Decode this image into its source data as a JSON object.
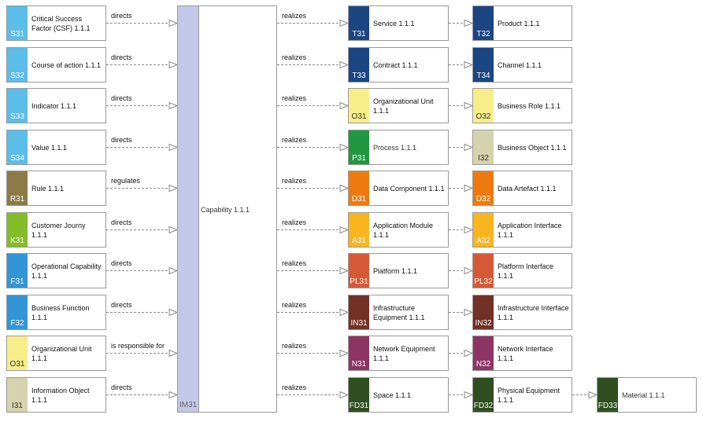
{
  "left_nodes": [
    {
      "code": "S31",
      "label": "Critical Success Factor (CSF) 1.1.1",
      "color": "#5bbde8",
      "relation": "directs"
    },
    {
      "code": "S32",
      "label": "Course of action 1.1.1",
      "color": "#5bbde8",
      "relation": "directs"
    },
    {
      "code": "S33",
      "label": "Indicator 1.1.1",
      "color": "#5bbde8",
      "relation": "directs"
    },
    {
      "code": "S34",
      "label": "Value 1.1.1",
      "color": "#5bbde8",
      "relation": "directs"
    },
    {
      "code": "R31",
      "label": "Rule 1.1.1",
      "color": "#8c7a47",
      "relation": "regulates"
    },
    {
      "code": "K31",
      "label": "Customer Journy 1.1.1",
      "color": "#84bd2a",
      "relation": "directs"
    },
    {
      "code": "F31",
      "label": "Operational Capability 1.1.1",
      "color": "#3395d6",
      "relation": "directs"
    },
    {
      "code": "F32",
      "label": "Business Function 1.1.1",
      "color": "#3395d6",
      "relation": "directs"
    },
    {
      "code": "O31",
      "label": "Organizational Unit 1.1.1",
      "color": "#f7ee8a",
      "relation": "is responsible for",
      "dark": true
    },
    {
      "code": "I31",
      "label": "Information Object 1.1.1",
      "color": "#d4d3ad",
      "relation": "directs",
      "dark": true
    }
  ],
  "capability": {
    "code": "IM31",
    "label": "Capability 1.1.1",
    "color": "#c2c9e8"
  },
  "right_rows": [
    {
      "relation": "realizes",
      "a": {
        "code": "T31",
        "label": "Service 1.1.1",
        "color": "#1b4682"
      },
      "b": {
        "code": "T32",
        "label": "Product 1.1.1",
        "color": "#1b4682"
      }
    },
    {
      "relation": "realizes",
      "a": {
        "code": "T33",
        "label": "Contract 1.1.1",
        "color": "#1b4682"
      },
      "b": {
        "code": "T34",
        "label": "Channel 1.1.1",
        "color": "#1b4682"
      }
    },
    {
      "relation": "realizes",
      "a": {
        "code": "O31",
        "label": "Organizational Unit 1.1.1",
        "color": "#f7ee8a",
        "dark": true
      },
      "b": {
        "code": "O32",
        "label": "Business Role 1.1.1",
        "color": "#f7ee8a",
        "dark": true
      }
    },
    {
      "relation": "realizes",
      "a": {
        "code": "P31",
        "label": "Process 1.1.1",
        "color": "#229640",
        "normal": true
      },
      "b": {
        "code": "I32",
        "label": "Business Object 1.1.1",
        "color": "#d4d3ad",
        "dark": true
      }
    },
    {
      "relation": "realizes",
      "a": {
        "code": "D31",
        "label": "Data Component 1.1.1",
        "color": "#ee7a0f"
      },
      "b": {
        "code": "D32",
        "label": "Data Artefact 1.1.1",
        "color": "#ee7a0f"
      }
    },
    {
      "relation": "realizes",
      "a": {
        "code": "A31",
        "label": "Application Module 1.1.1",
        "color": "#f8b520"
      },
      "b": {
        "code": "A32",
        "label": "Application Interface 1.1.1",
        "color": "#f8b520"
      }
    },
    {
      "relation": "realizes",
      "a": {
        "code": "PL31",
        "label": "Platform 1.1.1",
        "color": "#d65937"
      },
      "b": {
        "code": "PL32",
        "label": "Platform Interface 1.1.1",
        "color": "#d65937"
      }
    },
    {
      "relation": "realizes",
      "a": {
        "code": "IN31",
        "label": "Infrastructure Equipment 1.1.1",
        "color": "#733024"
      },
      "b": {
        "code": "IN32",
        "label": "Infrastructure Interface 1.1.1",
        "color": "#733024"
      }
    },
    {
      "relation": "realizes",
      "a": {
        "code": "N31",
        "label": "Network Equipment 1.1.1",
        "color": "#8c3565"
      },
      "b": {
        "code": "N32",
        "label": "Network Interface 1.1.1",
        "color": "#8c3565"
      }
    },
    {
      "relation": "realizes",
      "a": {
        "code": "FD31",
        "label": "Space 1.1.1",
        "color": "#2f4f20"
      },
      "b": {
        "code": "FD32",
        "label": "Physical Equipment 1.1.1",
        "color": "#2f4f20"
      },
      "c": {
        "code": "FD33",
        "label": "Material 1.1.1",
        "color": "#2f4f20",
        "normal": true
      }
    }
  ]
}
